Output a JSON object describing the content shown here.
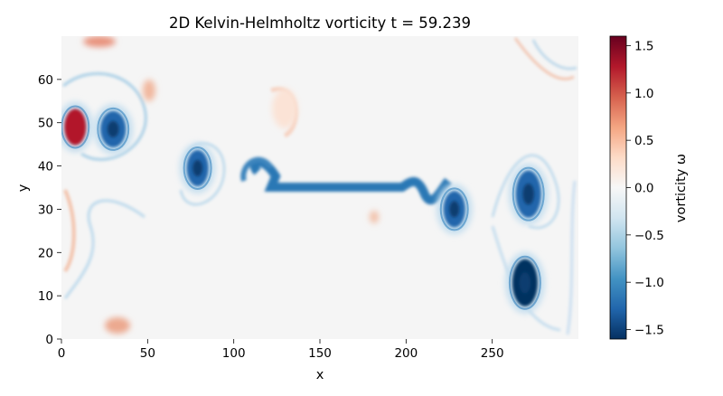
{
  "chart_data": {
    "type": "heatmap",
    "title": "2D Kelvin-Helmholtz vorticity  t = 59.239",
    "xlabel": "x",
    "ylabel": "y",
    "xlim": [
      0,
      300
    ],
    "ylim": [
      0,
      70
    ],
    "x_ticks": [
      0,
      50,
      100,
      150,
      200,
      250
    ],
    "y_ticks": [
      0,
      10,
      20,
      30,
      40,
      50,
      60
    ],
    "colorbar": {
      "label": "vorticity ω",
      "range": [
        -1.6,
        1.6
      ],
      "ticks": [
        "1.5",
        "1.0",
        "0.5",
        "0.0",
        "−0.5",
        "−1.0",
        "−1.5"
      ],
      "tick_values": [
        1.5,
        1.0,
        0.5,
        0.0,
        -0.5,
        -1.0,
        -1.5
      ],
      "colormap": "RdBu_r",
      "colors": [
        "#053061",
        "#2166ac",
        "#4393c3",
        "#92c5de",
        "#d1e5f0",
        "#f7f7f7",
        "#fddbc7",
        "#f4a582",
        "#d6604d",
        "#b2182b",
        "#67001f"
      ]
    },
    "vortices": [
      {
        "x": 30,
        "y": 48.5,
        "omega": -1.4
      },
      {
        "x": 79,
        "y": 39.5,
        "omega": -1.3
      },
      {
        "x": 228,
        "y": 30,
        "omega": -1.3
      },
      {
        "x": 271,
        "y": 33.5,
        "omega": -1.4
      },
      {
        "x": 269,
        "y": 13,
        "omega": -1.5
      },
      {
        "x": 8,
        "y": 49,
        "omega": 1.2
      }
    ],
    "filament": {
      "x_start": 112,
      "x_end": 202,
      "y": 35,
      "omega": -1.2
    },
    "background_omega": 0.0
  }
}
